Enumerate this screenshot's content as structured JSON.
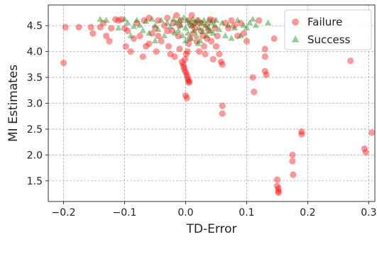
{
  "chart_data": {
    "type": "scatter",
    "title": "",
    "xlabel": "TD-Error",
    "ylabel": "MI Estimates",
    "xlim": [
      -0.225,
      0.31
    ],
    "ylim": [
      1.1,
      4.9
    ],
    "xticks": [
      -0.2,
      -0.1,
      0.0,
      0.1,
      0.2,
      0.3
    ],
    "xtick_labels": [
      "−0.2",
      "−0.1",
      "0.0",
      "0.1",
      "0.2",
      "0.3"
    ],
    "yticks": [
      1.5,
      2.0,
      2.5,
      3.0,
      3.5,
      4.0,
      4.5
    ],
    "ytick_labels": [
      "1.5",
      "2.0",
      "2.5",
      "3.0",
      "3.5",
      "4.0",
      "4.5"
    ],
    "grid": true,
    "legend_position": "top-right",
    "series": [
      {
        "name": "Failure",
        "marker": "circle",
        "color": "#ff0000",
        "points": [
          [
            -0.2,
            3.78
          ],
          [
            -0.197,
            4.47
          ],
          [
            -0.175,
            4.47
          ],
          [
            -0.155,
            4.47
          ],
          [
            -0.152,
            4.35
          ],
          [
            -0.14,
            4.47
          ],
          [
            -0.135,
            4.55
          ],
          [
            -0.13,
            4.3
          ],
          [
            -0.125,
            4.2
          ],
          [
            -0.122,
            4.45
          ],
          [
            -0.115,
            4.62
          ],
          [
            -0.11,
            4.6
          ],
          [
            -0.105,
            4.62
          ],
          [
            -0.1,
            4.45
          ],
          [
            -0.098,
            4.1
          ],
          [
            -0.095,
            4.4
          ],
          [
            -0.09,
            4.0
          ],
          [
            -0.085,
            4.25
          ],
          [
            -0.08,
            4.55
          ],
          [
            -0.075,
            4.3
          ],
          [
            -0.07,
            3.9
          ],
          [
            -0.068,
            4.6
          ],
          [
            -0.065,
            4.1
          ],
          [
            -0.06,
            4.65
          ],
          [
            -0.055,
            4.35
          ],
          [
            -0.05,
            4.45
          ],
          [
            -0.048,
            4.0
          ],
          [
            -0.045,
            4.6
          ],
          [
            -0.04,
            4.2
          ],
          [
            -0.035,
            4.5
          ],
          [
            -0.03,
            4.65
          ],
          [
            -0.028,
            4.1
          ],
          [
            -0.025,
            3.95
          ],
          [
            -0.022,
            4.4
          ],
          [
            -0.02,
            4.55
          ],
          [
            -0.018,
            3.9
          ],
          [
            -0.015,
            4.7
          ],
          [
            -0.012,
            4.3
          ],
          [
            -0.01,
            4.05
          ],
          [
            -0.008,
            4.6
          ],
          [
            -0.006,
            3.8
          ],
          [
            -0.004,
            3.75
          ],
          [
            -0.003,
            3.7
          ],
          [
            -0.002,
            3.65
          ],
          [
            0.0,
            3.6
          ],
          [
            0.002,
            3.55
          ],
          [
            0.003,
            3.5
          ],
          [
            0.004,
            3.45
          ],
          [
            0.005,
            3.4
          ],
          [
            0.006,
            3.42
          ],
          [
            0.0,
            3.15
          ],
          [
            0.002,
            3.1
          ],
          [
            -0.001,
            3.85
          ],
          [
            0.001,
            3.95
          ],
          [
            0.003,
            4.0
          ],
          [
            0.005,
            4.15
          ],
          [
            0.007,
            4.25
          ],
          [
            0.009,
            4.5
          ],
          [
            0.01,
            4.7
          ],
          [
            0.012,
            4.35
          ],
          [
            0.015,
            4.45
          ],
          [
            0.018,
            4.2
          ],
          [
            0.02,
            4.6
          ],
          [
            0.022,
            4.0
          ],
          [
            0.025,
            4.55
          ],
          [
            0.028,
            4.3
          ],
          [
            0.03,
            4.1
          ],
          [
            0.032,
            3.95
          ],
          [
            0.035,
            4.5
          ],
          [
            0.038,
            4.4
          ],
          [
            0.04,
            4.62
          ],
          [
            0.042,
            4.2
          ],
          [
            0.045,
            3.85
          ],
          [
            0.048,
            4.45
          ],
          [
            0.05,
            4.1
          ],
          [
            0.055,
            3.95
          ],
          [
            0.058,
            3.8
          ],
          [
            0.06,
            3.75
          ],
          [
            0.06,
            2.95
          ],
          [
            0.06,
            2.8
          ],
          [
            0.065,
            4.55
          ],
          [
            0.07,
            4.45
          ],
          [
            0.075,
            4.6
          ],
          [
            0.08,
            4.5
          ],
          [
            0.085,
            4.3
          ],
          [
            0.09,
            4.55
          ],
          [
            0.11,
            3.5
          ],
          [
            0.112,
            3.22
          ],
          [
            0.12,
            4.6
          ],
          [
            0.13,
            4.05
          ],
          [
            0.13,
            3.9
          ],
          [
            0.13,
            3.62
          ],
          [
            0.132,
            3.55
          ],
          [
            0.15,
            1.52
          ],
          [
            0.15,
            1.4
          ],
          [
            0.152,
            1.35
          ],
          [
            0.152,
            1.3
          ],
          [
            0.152,
            1.27
          ],
          [
            0.175,
            2.0
          ],
          [
            0.175,
            1.88
          ],
          [
            0.176,
            1.62
          ],
          [
            0.19,
            2.45
          ],
          [
            0.19,
            2.4
          ],
          [
            0.27,
            3.82
          ],
          [
            0.293,
            2.12
          ],
          [
            0.295,
            2.05
          ],
          [
            0.305,
            2.43
          ],
          [
            0.145,
            4.25
          ],
          [
            0.1,
            4.2
          ],
          [
            0.095,
            4.35
          ],
          [
            -0.03,
            4.4
          ],
          [
            -0.01,
            4.5
          ],
          [
            0.005,
            4.6
          ],
          [
            0.015,
            4.55
          ],
          [
            0.025,
            4.4
          ],
          [
            -0.045,
            4.3
          ],
          [
            -0.06,
            4.15
          ],
          [
            0.035,
            4.25
          ],
          [
            0.045,
            4.6
          ],
          [
            0.052,
            4.3
          ]
        ]
      },
      {
        "name": "Success",
        "marker": "triangle",
        "color": "#008000",
        "points": [
          [
            -0.14,
            4.62
          ],
          [
            -0.13,
            4.6
          ],
          [
            -0.1,
            4.62
          ],
          [
            -0.095,
            4.55
          ],
          [
            -0.085,
            4.48
          ],
          [
            -0.08,
            4.6
          ],
          [
            -0.075,
            4.5
          ],
          [
            -0.07,
            4.4
          ],
          [
            -0.065,
            4.58
          ],
          [
            -0.06,
            4.35
          ],
          [
            -0.055,
            4.62
          ],
          [
            -0.05,
            4.5
          ],
          [
            -0.045,
            4.42
          ],
          [
            -0.04,
            4.6
          ],
          [
            -0.035,
            4.3
          ],
          [
            -0.03,
            4.55
          ],
          [
            -0.025,
            4.48
          ],
          [
            -0.02,
            4.62
          ],
          [
            -0.018,
            4.35
          ],
          [
            -0.015,
            4.55
          ],
          [
            -0.012,
            4.4
          ],
          [
            -0.01,
            4.6
          ],
          [
            -0.008,
            4.5
          ],
          [
            -0.005,
            4.3
          ],
          [
            -0.003,
            4.65
          ],
          [
            0.0,
            4.45
          ],
          [
            0.002,
            4.6
          ],
          [
            0.004,
            4.35
          ],
          [
            0.006,
            4.55
          ],
          [
            0.008,
            4.25
          ],
          [
            0.01,
            4.5
          ],
          [
            0.012,
            4.62
          ],
          [
            0.014,
            4.4
          ],
          [
            0.016,
            4.55
          ],
          [
            0.018,
            4.3
          ],
          [
            0.02,
            4.6
          ],
          [
            0.022,
            4.45
          ],
          [
            0.024,
            4.2
          ],
          [
            0.026,
            4.55
          ],
          [
            0.028,
            4.38
          ],
          [
            0.03,
            4.6
          ],
          [
            0.032,
            4.5
          ],
          [
            0.034,
            4.3
          ],
          [
            0.036,
            4.45
          ],
          [
            0.038,
            4.6
          ],
          [
            0.04,
            4.4
          ],
          [
            0.042,
            4.55
          ],
          [
            0.045,
            4.35
          ],
          [
            0.048,
            4.5
          ],
          [
            0.05,
            4.6
          ],
          [
            0.055,
            4.42
          ],
          [
            0.06,
            4.55
          ],
          [
            0.065,
            4.3
          ],
          [
            0.07,
            4.5
          ],
          [
            0.075,
            4.25
          ],
          [
            0.08,
            4.45
          ],
          [
            0.085,
            4.6
          ],
          [
            0.09,
            4.3
          ],
          [
            0.095,
            4.5
          ],
          [
            0.1,
            4.45
          ],
          [
            0.105,
            4.55
          ],
          [
            0.11,
            4.62
          ],
          [
            0.115,
            4.5
          ],
          [
            0.135,
            4.55
          ],
          [
            0.18,
            4.5
          ],
          [
            -0.11,
            4.45
          ],
          [
            -0.09,
            4.3
          ],
          [
            -0.05,
            4.2
          ],
          [
            0.0,
            4.2
          ],
          [
            0.02,
            4.15
          ]
        ]
      }
    ]
  }
}
